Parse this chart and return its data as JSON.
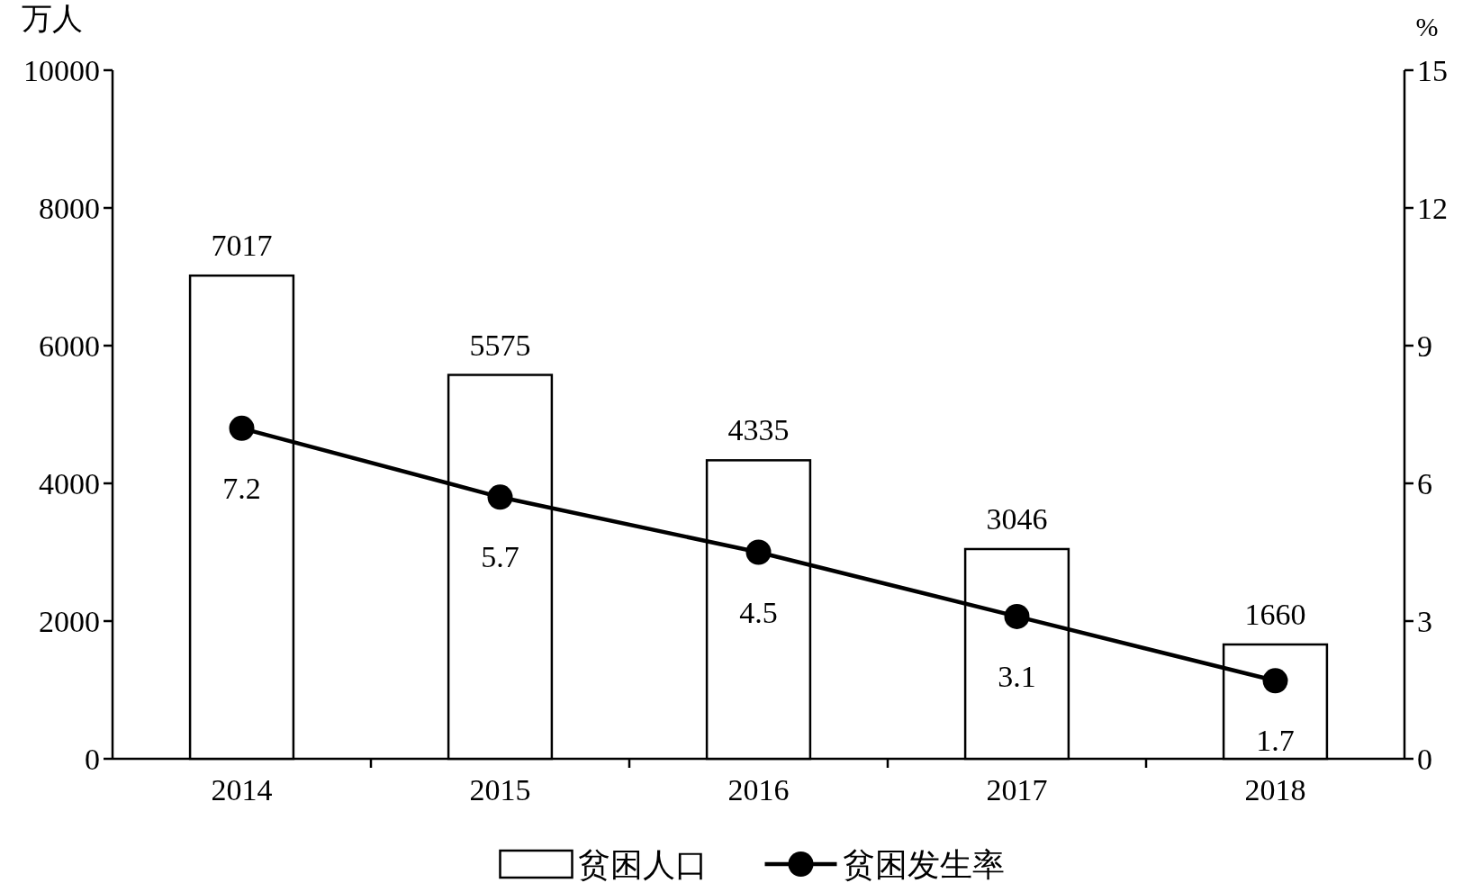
{
  "chart_data": {
    "type": "bar",
    "categories": [
      "2014",
      "2015",
      "2016",
      "2017",
      "2018"
    ],
    "ylabel": "万人",
    "y2label": "%",
    "ylim": [
      0,
      10000
    ],
    "yticks": [
      0,
      2000,
      4000,
      6000,
      8000,
      10000
    ],
    "y2lim": [
      0,
      15
    ],
    "y2ticks": [
      0,
      3,
      6,
      9,
      12,
      15
    ],
    "legend": "bottom",
    "marker": "circle",
    "data_labels": true,
    "series": [
      {
        "name": "贫困人口",
        "color": "#ffffff",
        "values": [
          7017,
          5575,
          4335,
          3046,
          1660
        ]
      },
      {
        "name": "贫困发生率",
        "type": "line",
        "axis": "y2",
        "color": "#000000",
        "values": [
          7.2,
          5.7,
          4.5,
          3.1,
          1.7
        ]
      }
    ]
  }
}
